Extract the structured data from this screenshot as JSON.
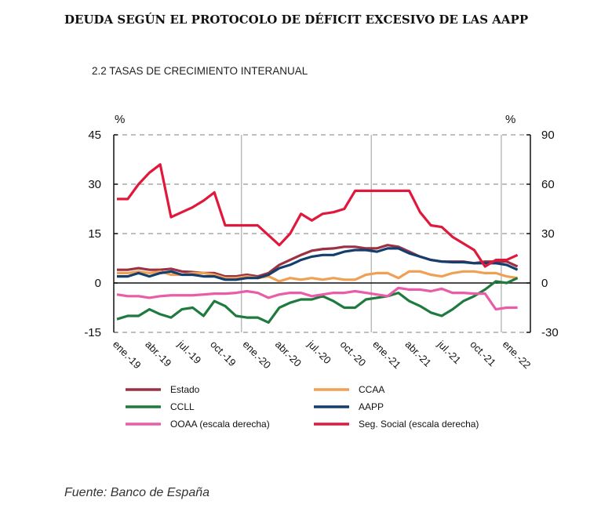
{
  "title": "DEUDA SEGÚN EL PROTOCOLO DE DÉFICIT EXCESIVO DE LAS AAPP",
  "source": "Fuente: Banco de España",
  "chart_data": {
    "type": "line",
    "title": "2.2 TASAS  DE CRECIMIENTO INTERANUAL",
    "ylabel_left": "%",
    "ylabel_right": "%",
    "ylim_left": [
      -15,
      45
    ],
    "yticks_left": [
      -15,
      0,
      15,
      30,
      45
    ],
    "ylim_right": [
      -30,
      90
    ],
    "yticks_right": [
      -30,
      0,
      30,
      60,
      90
    ],
    "grid": "horizontal dashed",
    "legend": "bottom",
    "x": [
      "ene-19",
      "feb-19",
      "mar-19",
      "abr-19",
      "may-19",
      "jun-19",
      "jul-19",
      "ago-19",
      "sep-19",
      "oct-19",
      "nov-19",
      "dic-19",
      "ene-20",
      "feb-20",
      "mar-20",
      "abr-20",
      "may-20",
      "jun-20",
      "jul-20",
      "ago-20",
      "sep-20",
      "oct-20",
      "nov-20",
      "dic-20",
      "ene-21",
      "feb-21",
      "mar-21",
      "abr-21",
      "may-21",
      "jun-21",
      "jul-21",
      "ago-21",
      "sep-21",
      "oct-21",
      "nov-21",
      "dic-21",
      "ene-22",
      "feb-22"
    ],
    "xticks": [
      "ene.-19",
      "abr.-19",
      "jul.-19",
      "oct.-19",
      "ene.-20",
      "abr.-20",
      "jul.-20",
      "oct.-20",
      "ene.-21",
      "abr.-21",
      "jul.-21",
      "oct.-21",
      "ene.-22"
    ],
    "series": [
      {
        "name": "Estado",
        "color": "#9b3142",
        "axis": "left",
        "values": [
          4,
          4,
          4.5,
          4,
          4,
          4.3,
          3.5,
          3.3,
          3,
          3,
          2,
          2,
          2.5,
          2,
          3,
          5.5,
          7,
          8.5,
          9.8,
          10.3,
          10.5,
          11,
          11,
          10.5,
          10.5,
          11.5,
          11,
          9.5,
          8,
          7,
          6.5,
          6.5,
          6.5,
          6,
          6.5,
          6.5,
          6.5,
          5
        ]
      },
      {
        "name": "CCAA",
        "color": "#f0a055",
        "axis": "left",
        "values": [
          3,
          3,
          3.5,
          3,
          3.5,
          2.5,
          2.5,
          3,
          3,
          2.5,
          1.5,
          1.5,
          2,
          1.5,
          2,
          0.5,
          1.5,
          1,
          1.5,
          1,
          1.5,
          1,
          1,
          2.5,
          3,
          3,
          1.5,
          3.5,
          3.5,
          2.5,
          2,
          3,
          3.5,
          3.5,
          3,
          3,
          2,
          1.5
        ]
      },
      {
        "name": "CCLL",
        "color": "#1f7a3e",
        "axis": "left",
        "values": [
          -11,
          -10,
          -10,
          -8,
          -9.5,
          -10.5,
          -8,
          -7.5,
          -10,
          -5.5,
          -7,
          -10,
          -10.5,
          -10.5,
          -12,
          -7.5,
          -6,
          -5,
          -5,
          -4,
          -5.5,
          -7.5,
          -7.5,
          -5,
          -4.5,
          -4,
          -3,
          -5.5,
          -7,
          -9,
          -10,
          -8,
          -5.5,
          -4,
          -2,
          0.5,
          0,
          1.5
        ]
      },
      {
        "name": "AAPP",
        "color": "#123f6e",
        "axis": "left",
        "values": [
          2,
          2,
          3,
          2,
          3,
          3.5,
          2.5,
          2.5,
          2,
          2,
          1,
          1,
          1.5,
          1.5,
          2.5,
          4.5,
          5.5,
          7,
          8,
          8.5,
          8.5,
          9.5,
          10,
          10,
          9.5,
          10.5,
          10.5,
          9,
          8,
          7,
          6.5,
          6.3,
          6.3,
          6,
          6,
          6,
          5.5,
          4
        ]
      },
      {
        "name": "OOAA (escala derecha)",
        "color": "#e85ca8",
        "axis": "right",
        "values": [
          -7,
          -8,
          -8,
          -9,
          -8,
          -7.5,
          -7.5,
          -7.5,
          -7,
          -6.5,
          -6.5,
          -6,
          -5,
          -6,
          -9,
          -7,
          -6,
          -6,
          -8,
          -7,
          -6,
          -6,
          -5,
          -6,
          -7,
          -8,
          -3,
          -4,
          -4,
          -5,
          -3.5,
          -6,
          -6,
          -6.5,
          -6.5,
          -16,
          -15,
          -15
        ]
      },
      {
        "name": "Seg. Social (escala derecha)",
        "color": "#e0183c",
        "axis": "right",
        "values": [
          51,
          51,
          60,
          67,
          72,
          40,
          43,
          46,
          50,
          55,
          35,
          35,
          35,
          35,
          29,
          23,
          30,
          42,
          38,
          42,
          43,
          45,
          56,
          56,
          56,
          56,
          56,
          56,
          43,
          35,
          34,
          28,
          24,
          20,
          10,
          14,
          14,
          17
        ]
      }
    ]
  }
}
